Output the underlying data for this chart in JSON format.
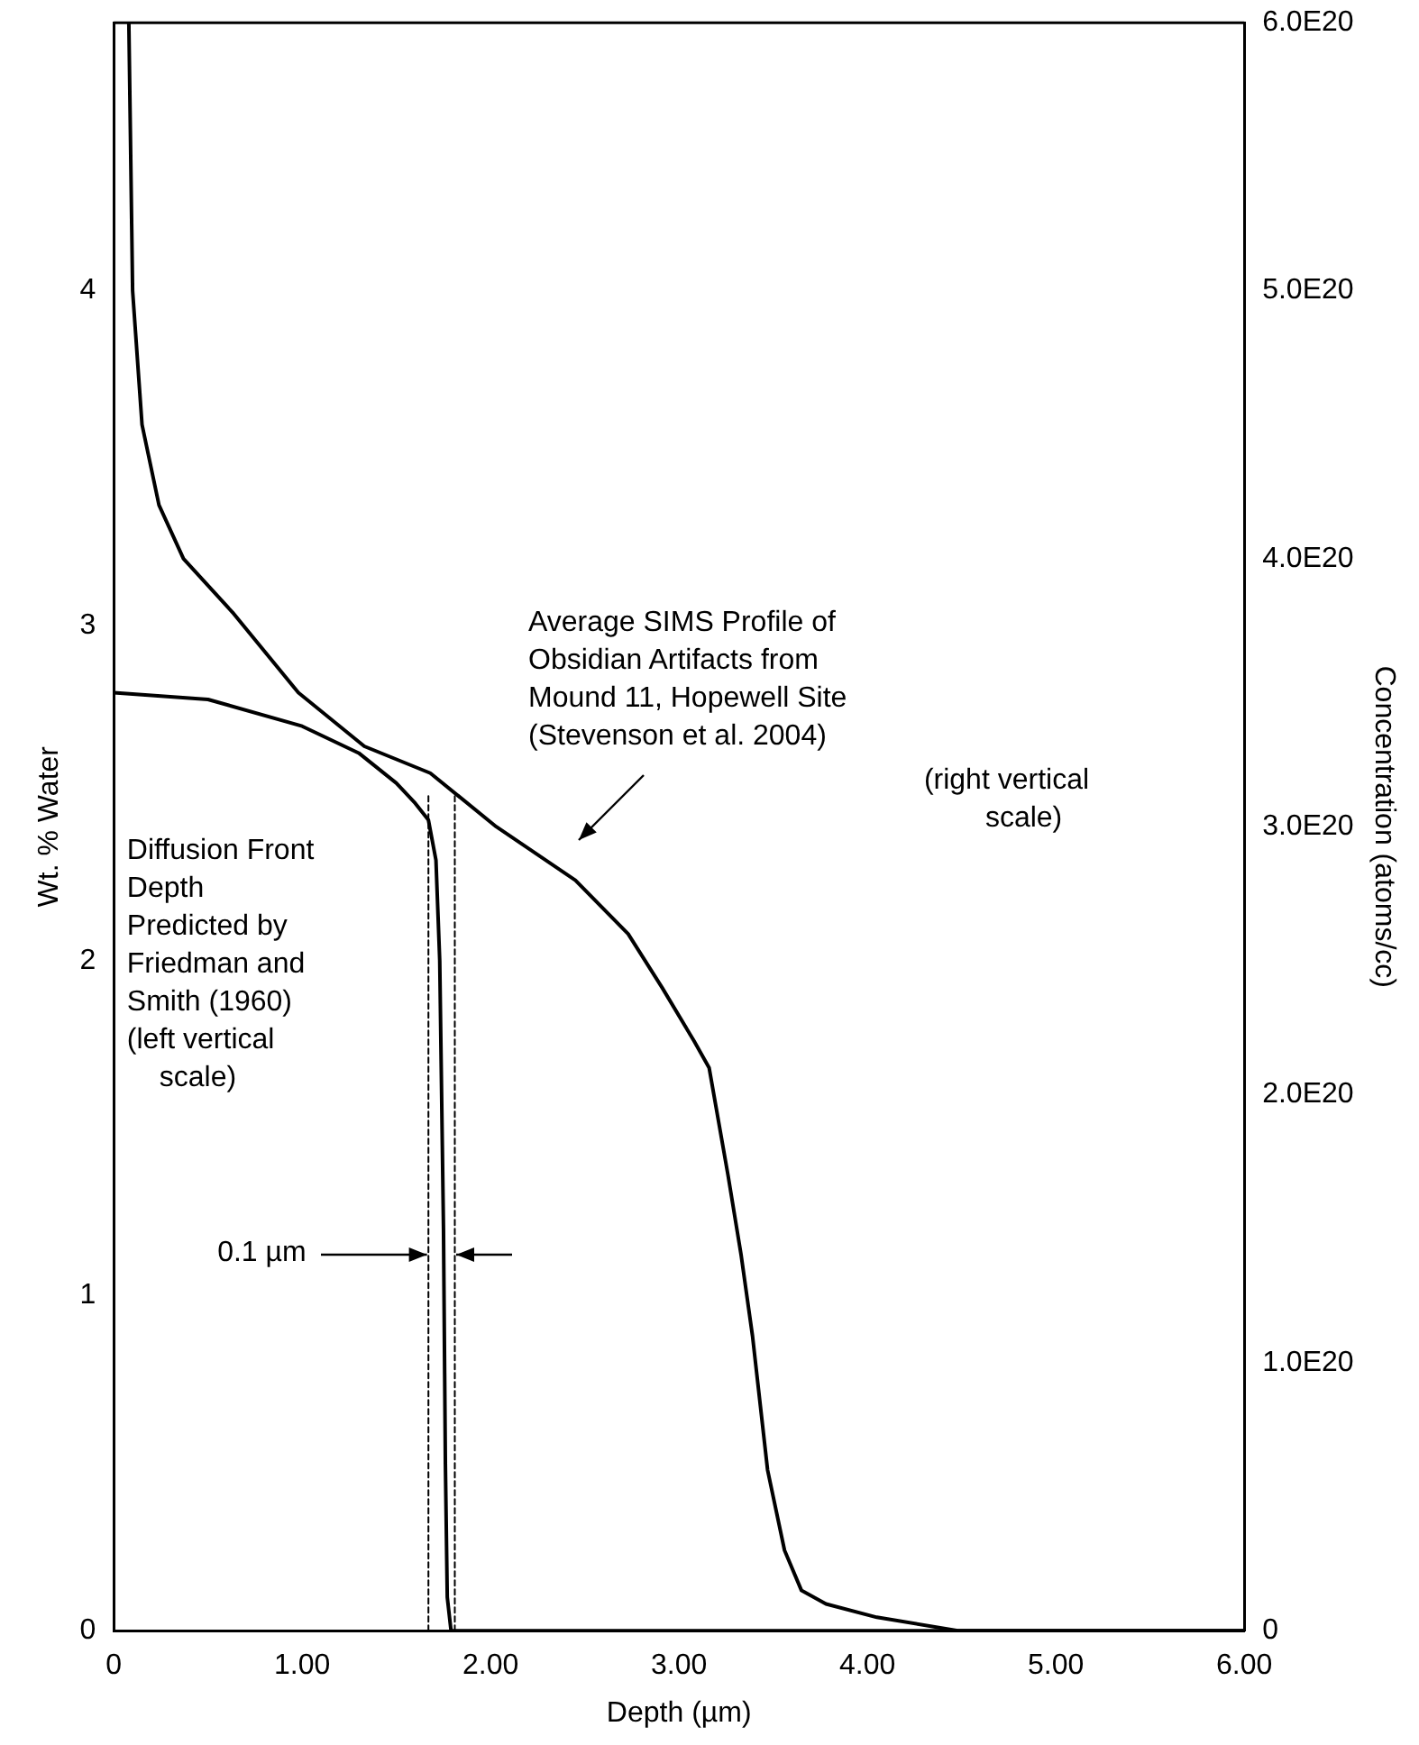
{
  "chart_data": {
    "type": "line",
    "xlabel": "Depth (µm)",
    "ylabel": "Wt. % Water",
    "y2label": "Concentration (atoms/cc)",
    "xlim": [
      0,
      6
    ],
    "xticks": [
      0,
      {
        "value": 1,
        "label": "1.00"
      },
      {
        "value": 2,
        "label": "2.00"
      },
      {
        "value": 3,
        "label": "3.00"
      },
      {
        "value": 4,
        "label": "4.00"
      },
      {
        "value": 5,
        "label": "5.00"
      },
      {
        "value": 6,
        "label": "6.00"
      }
    ],
    "ylim": [
      0,
      4.8
    ],
    "yticks": [
      0,
      1,
      2,
      3,
      4
    ],
    "y2lim": [
      0,
      6e+20
    ],
    "y2ticks": [
      0,
      {
        "value": 1e+20,
        "label": "1.0E20"
      },
      {
        "value": 2e+20,
        "label": "2.0E20"
      },
      {
        "value": 3e+20,
        "label": "3.0E20"
      },
      {
        "value": 4e+20,
        "label": "4.0E20"
      },
      {
        "value": 5e+20,
        "label": "5.0E20"
      },
      {
        "value": 6e+20,
        "label": "6.0E20"
      }
    ],
    "grid": false,
    "legend": false,
    "marker": "none",
    "series": [
      {
        "color": "#000000",
        "axis": "y2",
        "line_style": "solid",
        "x": [
          0.08,
          0.1,
          0.15,
          0.24,
          0.37,
          0.63,
          0.98,
          1.33,
          1.68,
          2.03,
          2.45,
          2.73,
          2.91,
          3.08,
          3.16,
          3.26,
          3.33,
          3.39,
          3.47,
          3.56,
          3.65,
          3.78,
          4.05,
          4.48,
          5.1,
          6.0
        ],
        "values": [
          6e+20,
          5e+20,
          4.5e+20,
          4.2e+20,
          4e+20,
          3.8e+20,
          3.5e+20,
          3.3e+20,
          3.2e+20,
          3e+20,
          2.8e+20,
          2.6e+20,
          2.4e+20,
          2.2e+20,
          2.1e+20,
          1.7e+20,
          1.4e+20,
          1.1e+20,
          6e+19,
          3e+19,
          1.5e+19,
          1e+19,
          5e+18,
          0,
          0,
          0
        ]
      },
      {
        "color": "#000000",
        "axis": "y",
        "line_style": "solid",
        "x": [
          0,
          0.5,
          1.0,
          1.3,
          1.5,
          1.6,
          1.67,
          1.71,
          1.73,
          1.75,
          1.76,
          1.77,
          1.79,
          6.0
        ],
        "values": [
          2.8,
          2.78,
          2.7,
          2.62,
          2.53,
          2.47,
          2.42,
          2.3,
          2.0,
          1.2,
          0.5,
          0.1,
          0,
          0
        ]
      },
      {
        "color": "#000000",
        "axis": "y",
        "line_style": "dashed",
        "x": [
          1.67,
          1.67
        ],
        "values": [
          0,
          2.5
        ]
      },
      {
        "color": "#000000",
        "axis": "y",
        "line_style": "dashed",
        "x": [
          1.81,
          1.81
        ],
        "values": [
          0,
          2.5
        ]
      }
    ],
    "annotations": [
      "Average SIMS Profile of\nObsidian Artifacts from\nMound 11, Hopewell Site\n(Stevenson et al. 2004)",
      "(right vertical\nscale)",
      "Diffusion Front\nDepth\nPredicted by\nFriedman and\nSmith (1960)\n(left vertical\nscale)",
      "0.1 µm"
    ]
  }
}
